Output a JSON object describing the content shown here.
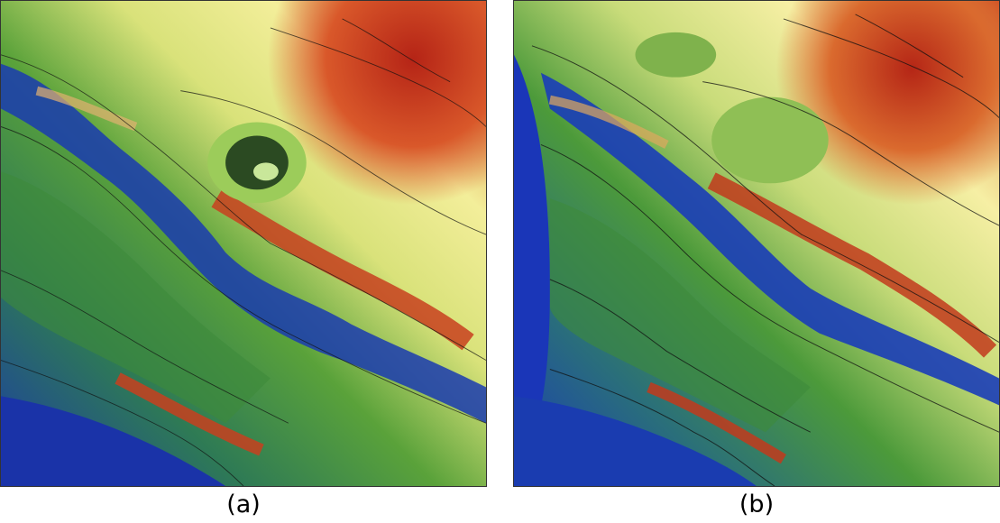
{
  "panels": [
    {
      "label": "(a)"
    },
    {
      "label": "(b)"
    }
  ],
  "colors": {
    "low": "#1233b8",
    "mid_low": "#2e7a6a",
    "mid": "#4f9a33",
    "mid_high": "#9cc653",
    "high": "#f5f0a0",
    "peak": "#c2321c",
    "contour": "#111111"
  }
}
